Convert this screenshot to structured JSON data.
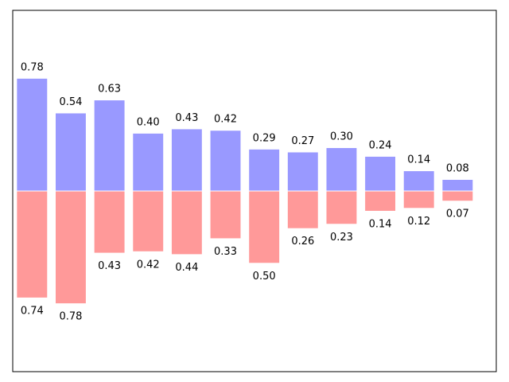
{
  "chart_data": {
    "type": "bar",
    "title": "",
    "xlabel": "",
    "ylabel": "",
    "x": [
      0,
      1,
      2,
      3,
      4,
      5,
      6,
      7,
      8,
      9,
      10,
      11
    ],
    "series": [
      {
        "values": [
          0.78,
          0.54,
          0.63,
          0.4,
          0.43,
          0.42,
          0.29,
          0.27,
          0.3,
          0.24,
          0.14,
          0.08
        ],
        "labels": [
          "0.78",
          "0.54",
          "0.63",
          "0.40",
          "0.43",
          "0.42",
          "0.29",
          "0.27",
          "0.30",
          "0.24",
          "0.14",
          "0.08"
        ],
        "color": "#9999ff",
        "edgecolor": "#ffffff"
      },
      {
        "values": [
          -0.74,
          -0.78,
          -0.43,
          -0.42,
          -0.44,
          -0.33,
          -0.5,
          -0.26,
          -0.23,
          -0.14,
          -0.12,
          -0.07
        ],
        "labels": [
          "0.74",
          "0.78",
          "0.43",
          "0.42",
          "0.44",
          "0.33",
          "0.50",
          "0.26",
          "0.23",
          "0.14",
          "0.12",
          "0.07"
        ],
        "color": "#ff9999",
        "edgecolor": "#ffffff"
      }
    ],
    "xlim": [
      -0.5,
      12
    ],
    "ylim": [
      -1.25,
      1.25
    ],
    "axes_visible": false,
    "grid": false,
    "legend": "none"
  }
}
